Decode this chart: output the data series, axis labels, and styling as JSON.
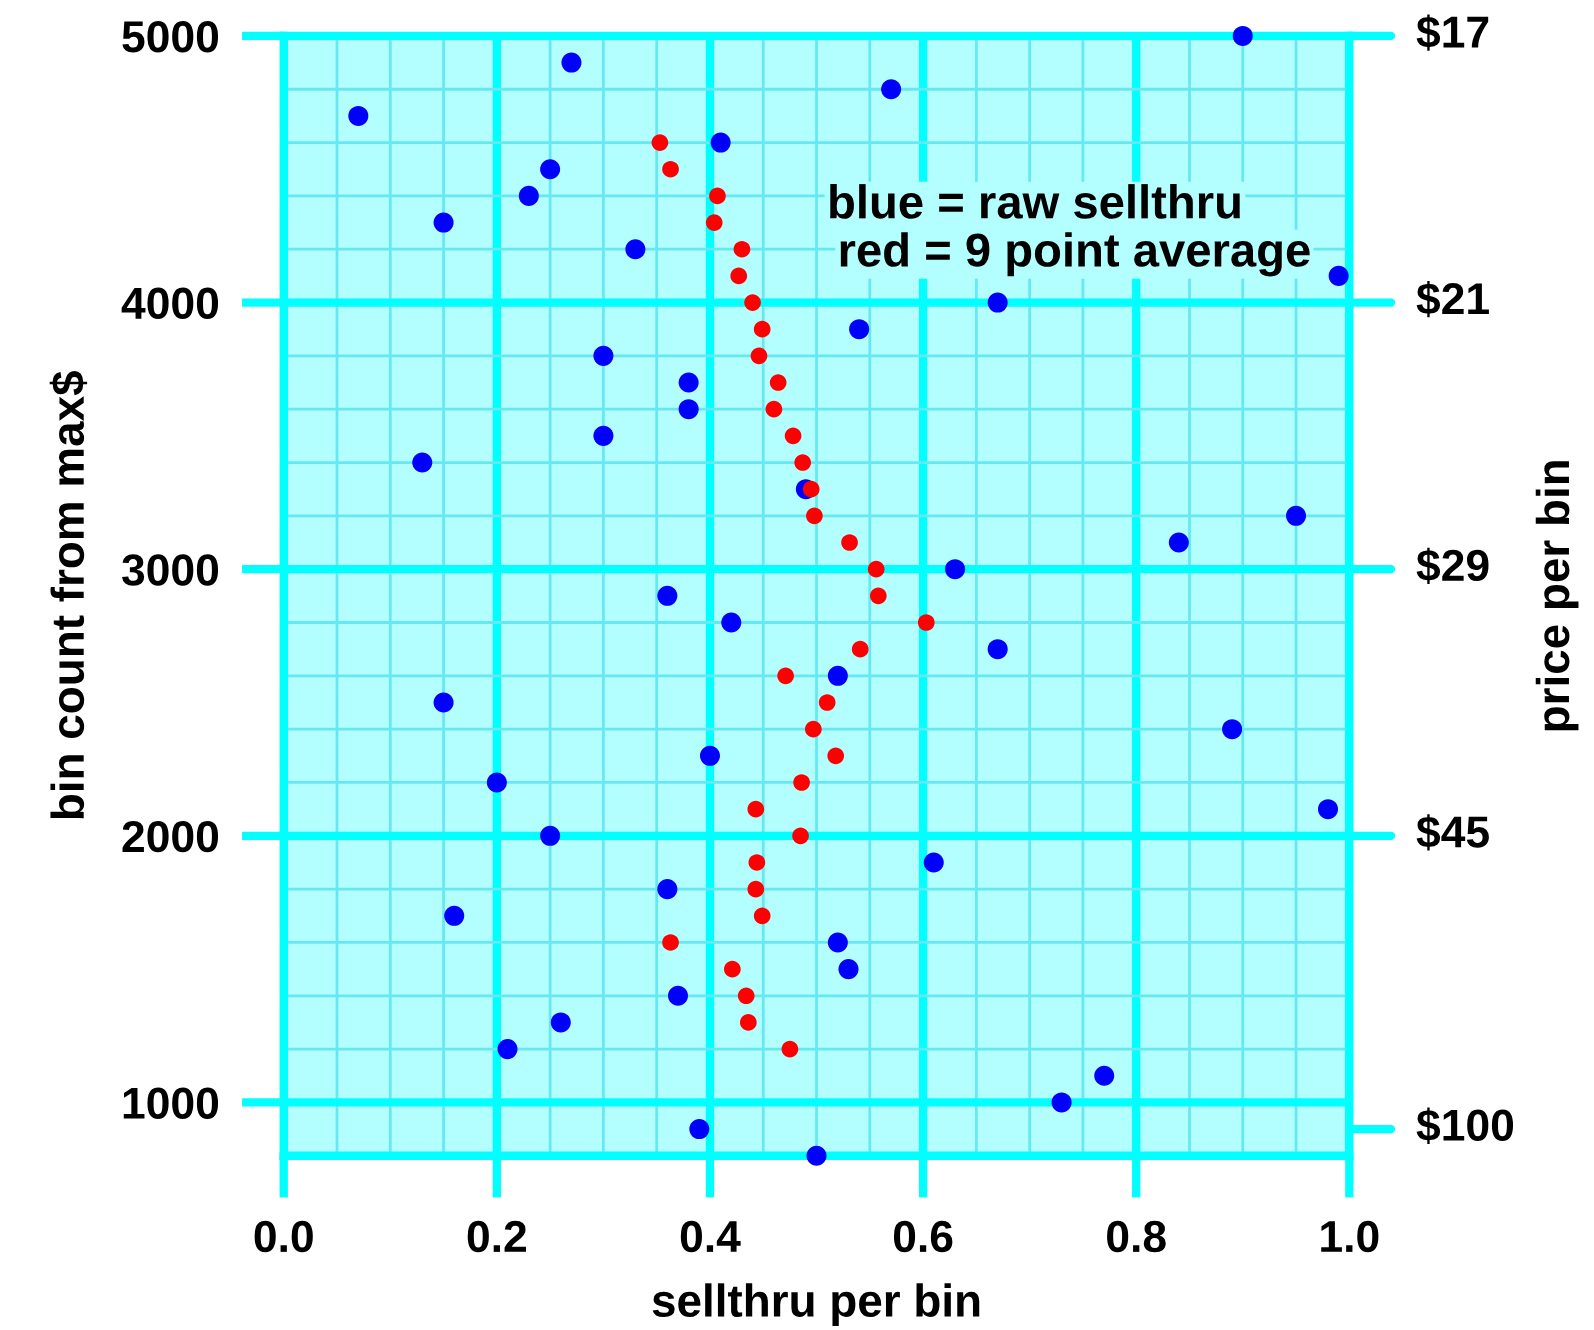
{
  "chart_data": {
    "type": "scatter",
    "xlabel": "sellthru per bin",
    "ylabel": "bin count from max$",
    "y2label": "price per bin",
    "annotations": [
      "blue = raw sellthru",
      "red = 9 point average",
      "$17",
      "$21",
      "$29",
      "$45",
      "$100"
    ],
    "xlim": [
      0,
      1
    ],
    "ylim": [
      800,
      5000
    ],
    "xticks": [
      {
        "value": 0,
        "label": "0.0"
      },
      {
        "value": 0.05,
        "label": null
      },
      {
        "value": 0.1,
        "label": null
      },
      {
        "value": 0.15,
        "label": null
      },
      {
        "value": 0.2,
        "label": "0.2"
      },
      {
        "value": 0.25,
        "label": null
      },
      {
        "value": 0.3,
        "label": null
      },
      {
        "value": 0.35,
        "label": null
      },
      {
        "value": 0.4,
        "label": "0.4"
      },
      {
        "value": 0.45,
        "label": null
      },
      {
        "value": 0.5,
        "label": null
      },
      {
        "value": 0.55,
        "label": null
      },
      {
        "value": 0.6,
        "label": "0.6"
      },
      {
        "value": 0.65,
        "label": null
      },
      {
        "value": 0.7,
        "label": null
      },
      {
        "value": 0.75,
        "label": null
      },
      {
        "value": 0.8,
        "label": "0.8"
      },
      {
        "value": 0.85,
        "label": null
      },
      {
        "value": 0.9,
        "label": null
      },
      {
        "value": 0.95,
        "label": null
      },
      {
        "value": 1,
        "label": "1.0"
      }
    ],
    "yticks": [
      {
        "value": 800,
        "label": null
      },
      1000,
      {
        "value": 1200,
        "label": null
      },
      {
        "value": 1400,
        "label": null
      },
      {
        "value": 1600,
        "label": null
      },
      {
        "value": 1800,
        "label": null
      },
      2000,
      {
        "value": 2200,
        "label": null
      },
      {
        "value": 2400,
        "label": null
      },
      {
        "value": 2600,
        "label": null
      },
      {
        "value": 2800,
        "label": null
      },
      3000,
      {
        "value": 3200,
        "label": null
      },
      {
        "value": 3400,
        "label": null
      },
      {
        "value": 3600,
        "label": null
      },
      {
        "value": 3800,
        "label": null
      },
      4000,
      {
        "value": 4200,
        "label": null
      },
      {
        "value": 4400,
        "label": null
      },
      {
        "value": 4600,
        "label": null
      },
      {
        "value": 4800,
        "label": null
      },
      5000
    ],
    "grid": true,
    "marker": "circle",
    "series": [
      {
        "color": "#0000ff",
        "x": [
          0.9,
          0.27,
          0.57,
          0.07,
          0.41,
          0.25,
          0.23,
          0.15,
          0.33,
          0.99,
          0.67,
          0.54,
          0.3,
          0.38,
          0.38,
          0.3,
          0.13,
          0.49,
          0.95,
          0.84,
          0.63,
          0.36,
          0.42,
          0.67,
          0.52,
          0.15,
          0.89,
          0.4,
          0.2,
          0.98,
          0.25,
          0.61,
          0.36,
          0.16,
          0.52,
          0.53,
          0.37,
          0.26,
          0.21,
          0.77,
          0.73,
          0.39,
          0.5
        ],
        "values": [
          5000,
          4900,
          4800,
          4700,
          4600,
          4500,
          4400,
          4300,
          4200,
          4100,
          4000,
          3900,
          3800,
          3700,
          3600,
          3500,
          3400,
          3300,
          3200,
          3100,
          3000,
          2900,
          2800,
          2700,
          2600,
          2500,
          2400,
          2300,
          2200,
          2100,
          2000,
          1900,
          1800,
          1700,
          1600,
          1500,
          1400,
          1300,
          1200,
          1100,
          1000,
          900,
          800
        ]
      },
      {
        "color": "#ff0000",
        "x": [
          0.353,
          0.363,
          0.407,
          0.404,
          0.43,
          0.427,
          0.44,
          0.449,
          0.446,
          0.464,
          0.46,
          0.478,
          0.487,
          0.495,
          0.498,
          0.531,
          0.556,
          0.558,
          0.603,
          0.541,
          0.471,
          0.51,
          0.497,
          0.518,
          0.486,
          0.443,
          0.485,
          0.444,
          0.443,
          0.449,
          0.363,
          0.421,
          0.434,
          0.436,
          0.475
        ],
        "values": [
          4600,
          4500,
          4400,
          4300,
          4200,
          4100,
          4000,
          3900,
          3800,
          3700,
          3600,
          3500,
          3400,
          3300,
          3200,
          3100,
          3000,
          2900,
          2800,
          2700,
          2600,
          2500,
          2400,
          2300,
          2200,
          2100,
          2000,
          1900,
          1800,
          1700,
          1600,
          1500,
          1400,
          1300,
          1200
        ]
      }
    ]
  }
}
